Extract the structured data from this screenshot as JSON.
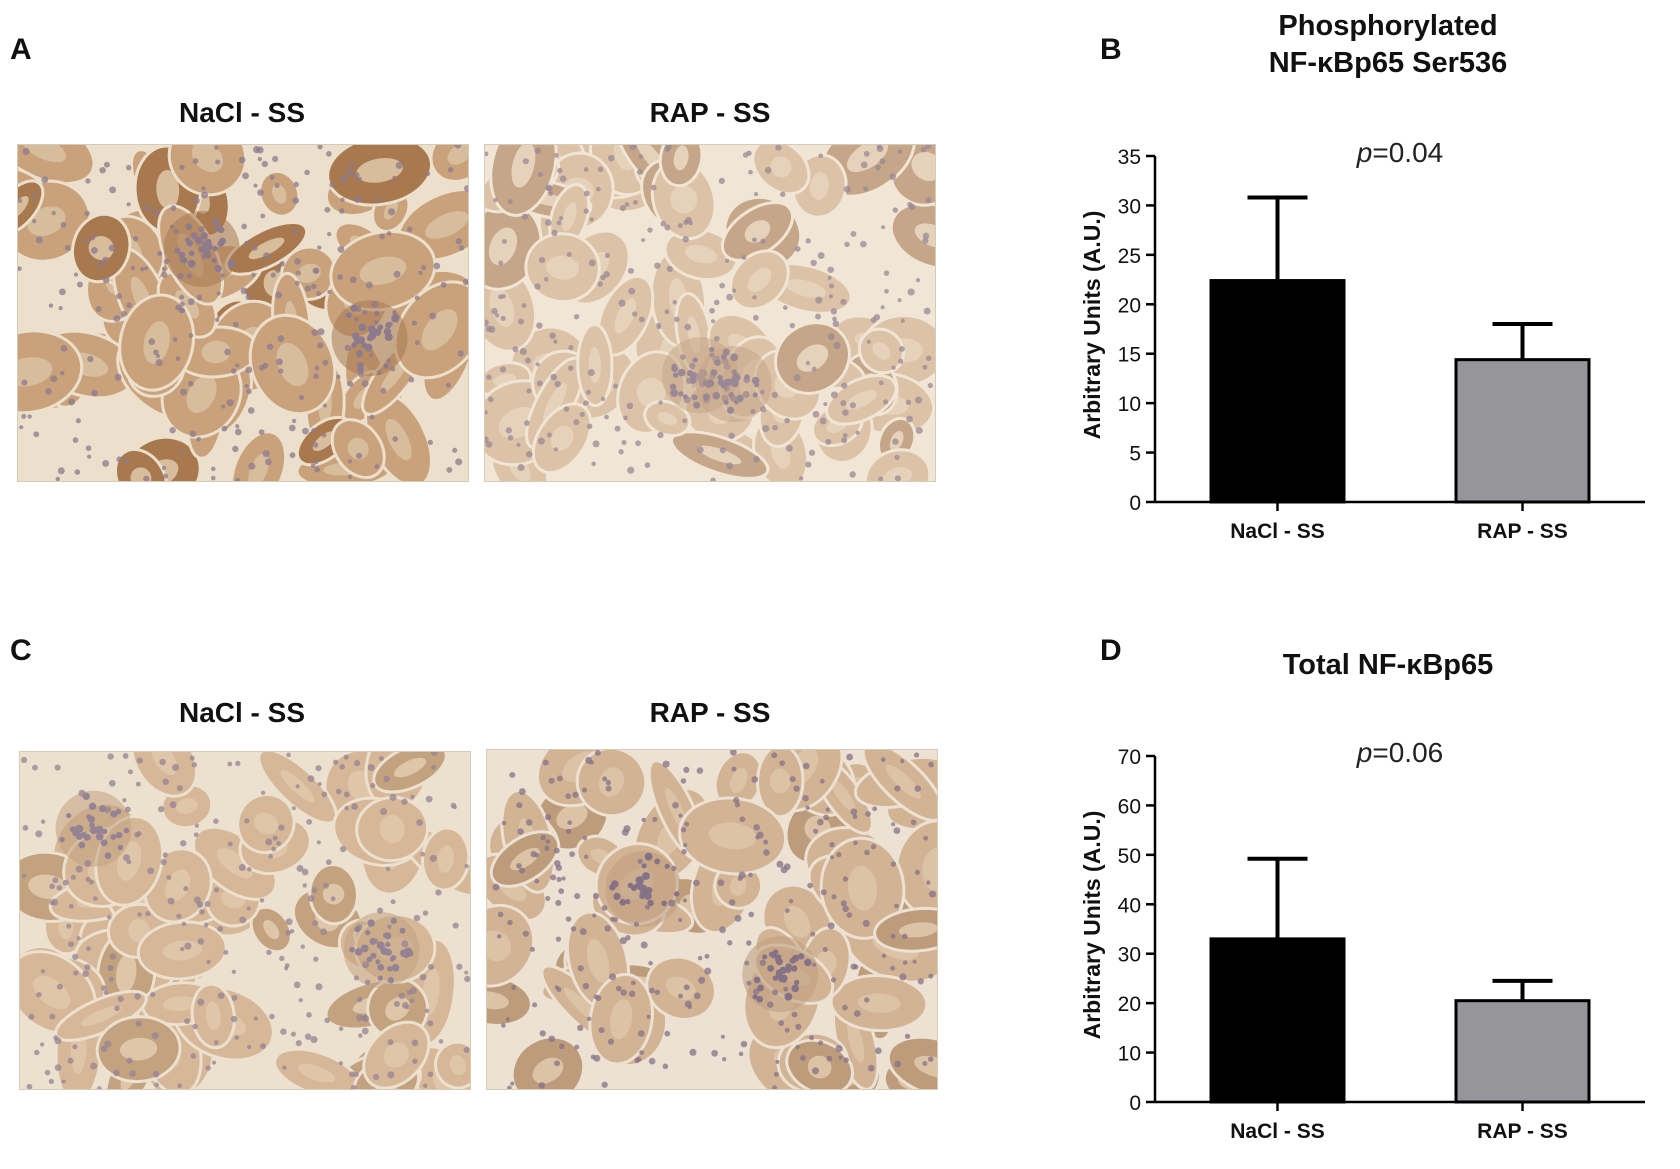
{
  "panels": {
    "A": {
      "letter": "A",
      "left_label": "NaCl - SS",
      "right_label": "RAP - SS"
    },
    "B": {
      "letter": "B"
    },
    "C": {
      "letter": "C",
      "left_label": "NaCl - SS",
      "right_label": "RAP - SS"
    },
    "D": {
      "letter": "D"
    }
  },
  "tissue_colors": {
    "A_left": {
      "base": "#c9a27c",
      "tubule": "#d8bd9c",
      "lumen": "#ece0cc",
      "nucleus": "#8d7a8c",
      "dark": "#a8794f"
    },
    "A_right": {
      "base": "#dcc2a6",
      "tubule": "#e6d2bb",
      "lumen": "#f1e6d6",
      "nucleus": "#9a8894",
      "dark": "#c6a688"
    },
    "C_left": {
      "base": "#d6b898",
      "tubule": "#dfc6a8",
      "lumen": "#ece0cf",
      "nucleus": "#958393",
      "dark": "#c3a27f"
    },
    "C_right": {
      "base": "#d2b494",
      "tubule": "#dcc3a6",
      "lumen": "#ece1d3",
      "nucleus": "#857286",
      "dark": "#bd9c7c"
    }
  },
  "chart_data": [
    {
      "type": "bar",
      "title_line1": "Phosphorylated",
      "title_line2": "NF-κBp65 Ser536",
      "ylabel": "Arbitrary Units (A.U.)",
      "annotation_p": "p",
      "annotation_value": "=0.04",
      "categories": [
        "NaCl - SS",
        "RAP - SS"
      ],
      "values": [
        22.4,
        14.4
      ],
      "errors": [
        8.4,
        3.6
      ],
      "colors": [
        "#000000",
        "#96969a"
      ],
      "ylim": [
        0,
        35
      ],
      "yticks": [
        0,
        5,
        10,
        15,
        20,
        25,
        30,
        35
      ]
    },
    {
      "type": "bar",
      "title_line1": "Total NF-κBp65",
      "title_line2": "",
      "ylabel": "Arbitrary Units (A.U.)",
      "annotation_p": "p",
      "annotation_value": "=0.06",
      "categories": [
        "NaCl - SS",
        "RAP - SS"
      ],
      "values": [
        33.0,
        20.5
      ],
      "errors": [
        16.2,
        4.0
      ],
      "colors": [
        "#000000",
        "#96969a"
      ],
      "ylim": [
        0,
        70
      ],
      "yticks": [
        0,
        10,
        20,
        30,
        40,
        50,
        60,
        70
      ]
    }
  ]
}
